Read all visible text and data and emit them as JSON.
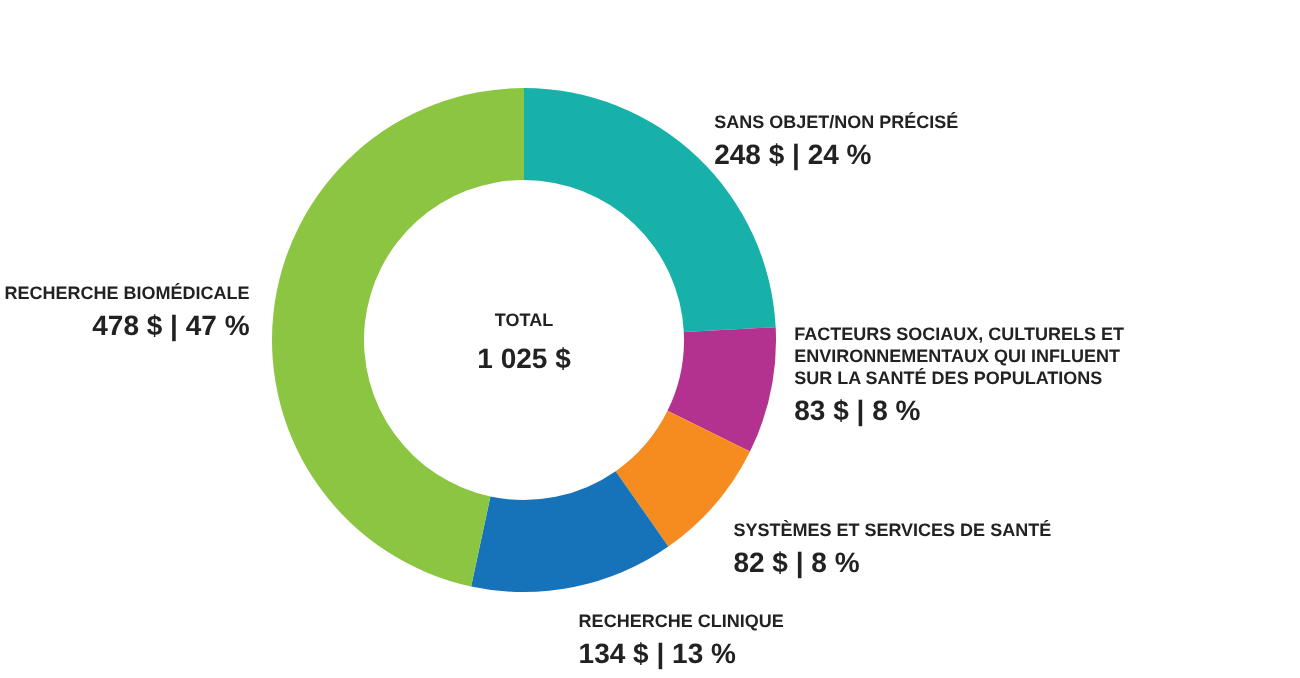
{
  "chart_data": {
    "type": "donut",
    "categories": [
      "SANS OBJET/NON PRÉCISÉ",
      "FACTEURS SOCIAUX, CULTURELS ET ENVIRONNEMENTAUX QUI INFLUENT SUR LA SANTÉ DES POPULATIONS",
      "SYSTÈMES ET SERVICES DE SANTÉ",
      "RECHERCHE CLINIQUE",
      "RECHERCHE BIOMÉDICALE"
    ],
    "values": [
      248,
      83,
      82,
      134,
      478
    ],
    "colors": [
      "#17b1a9",
      "#b3328f",
      "#f68b1f",
      "#1673ba",
      "#8bc541"
    ],
    "value_labels": [
      "248 $ | 24 %",
      "83 $ | 8 %",
      "82 $ | 8 %",
      "134 $ | 13 %",
      "478 $ | 47 %"
    ],
    "annotations": [
      "TOTAL",
      "1 025 $"
    ]
  }
}
